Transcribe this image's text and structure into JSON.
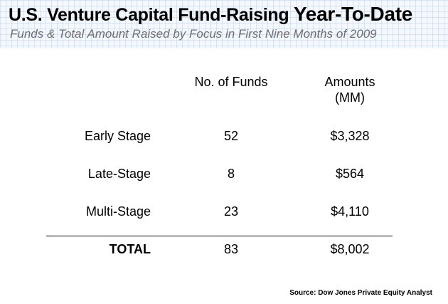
{
  "title": {
    "main": "U.S. Venture Capital Fund-Raising",
    "emphasis": "Year-To-Date"
  },
  "subtitle": "Funds & Total Amount Raised by Focus in First Nine Months of 2009",
  "table": {
    "headers": {
      "funds": "No. of Funds",
      "amounts_line1": "Amounts",
      "amounts_line2": "(MM)"
    },
    "rows": [
      {
        "label": "Early Stage",
        "funds": "52",
        "amount": "$3,328"
      },
      {
        "label": "Late-Stage",
        "funds": "8",
        "amount": "$564"
      },
      {
        "label": "Multi-Stage",
        "funds": "23",
        "amount": "$4,110"
      }
    ],
    "total": {
      "label": "TOTAL",
      "funds": "83",
      "amount": "$8,002"
    }
  },
  "source": "Source: Dow Jones Private Equity Analyst",
  "colors": {
    "header_bg": "#f5f8fc",
    "subtitle": "#6e6e6e",
    "text": "#000000"
  }
}
